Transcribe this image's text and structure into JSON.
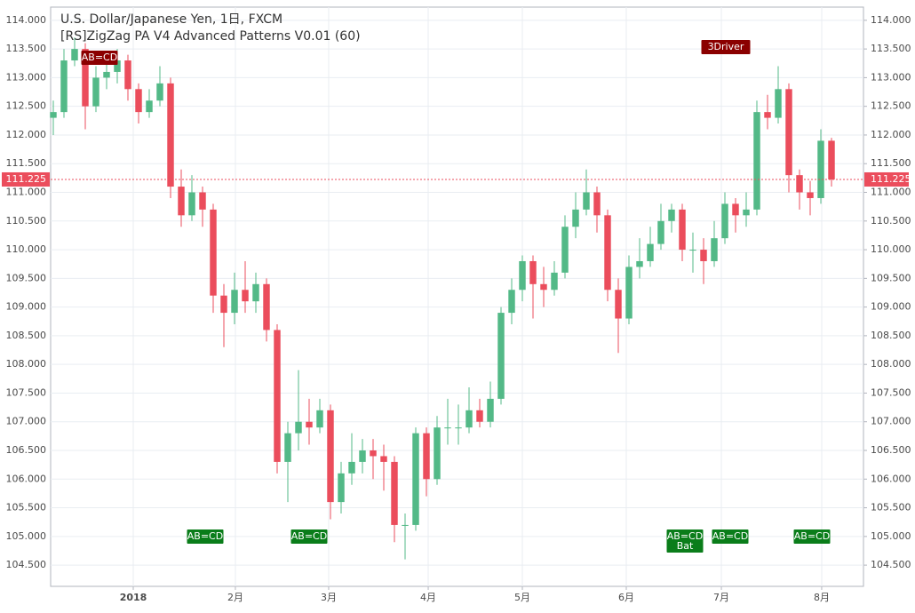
{
  "chart_data": {
    "type": "candlestick",
    "title": "U.S. Dollar/Japanese Yen, 1日, FXCM",
    "subtitle": "[RS]ZigZag PA V4 Advanced Patterns V0.01 (60)",
    "up_color": "#53b987",
    "down_color": "#eb4d5c",
    "grid": true,
    "categories": [
      null,
      null,
      null,
      null,
      null,
      null,
      null,
      null,
      null,
      null,
      null,
      null,
      null,
      null,
      null,
      null,
      null,
      null,
      null,
      null,
      null,
      null,
      null,
      null,
      null,
      null,
      null,
      null,
      null,
      null,
      null,
      null,
      null,
      null,
      null,
      null,
      null,
      null,
      null,
      null,
      null,
      null,
      null,
      null,
      null,
      null,
      null,
      null,
      null,
      null,
      null,
      null,
      null,
      null,
      null,
      null,
      null,
      null,
      null,
      null,
      null,
      null,
      null,
      null,
      null,
      null,
      null,
      null,
      null,
      null,
      null,
      null,
      null,
      null
    ],
    "open": [
      112.3,
      112.4,
      113.3,
      113.5,
      112.5,
      113.0,
      113.1,
      113.3,
      112.8,
      112.4,
      112.6,
      112.9,
      111.1,
      110.6,
      111.0,
      110.7,
      109.2,
      108.9,
      109.3,
      109.1,
      109.4,
      108.6,
      106.3,
      106.8,
      107.0,
      106.9,
      107.2,
      105.6,
      106.1,
      106.3,
      106.5,
      106.4,
      106.3,
      105.2,
      105.2,
      106.8,
      106.0,
      106.9,
      106.9,
      106.9,
      107.2,
      107.0,
      107.4,
      108.9,
      109.3,
      109.8,
      109.4,
      109.3,
      109.6,
      110.4,
      110.7,
      111.0,
      110.6,
      109.3,
      108.8,
      109.7,
      109.8,
      110.1,
      110.5,
      110.7,
      110.0,
      110.0,
      109.8,
      110.2,
      110.8,
      110.6,
      110.7,
      112.4,
      112.3,
      112.8,
      111.3,
      111.0,
      110.9,
      111.9
    ],
    "high": [
      112.6,
      113.5,
      113.7,
      113.6,
      113.2,
      113.4,
      113.5,
      113.4,
      112.9,
      112.8,
      113.2,
      113.0,
      111.4,
      111.3,
      111.1,
      110.8,
      109.4,
      109.6,
      109.8,
      109.6,
      109.5,
      108.7,
      107.0,
      107.9,
      107.4,
      107.4,
      107.3,
      106.3,
      106.8,
      106.7,
      106.7,
      106.6,
      106.4,
      105.4,
      106.9,
      106.9,
      107.1,
      107.4,
      107.3,
      107.6,
      107.4,
      107.7,
      109.0,
      109.5,
      109.9,
      109.9,
      109.7,
      109.8,
      110.6,
      111.0,
      111.4,
      111.1,
      110.7,
      109.5,
      109.9,
      110.2,
      110.4,
      110.8,
      110.8,
      110.8,
      110.3,
      110.2,
      110.5,
      111.0,
      110.9,
      111.0,
      112.6,
      112.7,
      113.2,
      112.9,
      111.4,
      111.2,
      112.1,
      111.95
    ],
    "low": [
      112.0,
      112.3,
      113.2,
      112.1,
      112.4,
      112.8,
      112.9,
      112.6,
      112.2,
      112.3,
      112.5,
      110.9,
      110.4,
      110.5,
      110.4,
      108.9,
      108.3,
      108.7,
      108.9,
      108.9,
      108.4,
      106.1,
      105.6,
      106.5,
      106.6,
      106.8,
      105.3,
      105.4,
      105.9,
      106.1,
      106.0,
      105.8,
      104.9,
      104.6,
      105.1,
      105.7,
      105.9,
      106.6,
      106.6,
      106.8,
      106.9,
      106.9,
      107.3,
      108.7,
      109.1,
      108.8,
      109.0,
      109.2,
      109.5,
      110.2,
      110.6,
      110.3,
      109.1,
      108.2,
      108.7,
      109.5,
      109.7,
      110.0,
      110.3,
      109.8,
      109.6,
      109.4,
      109.7,
      110.1,
      110.3,
      110.4,
      110.6,
      112.1,
      112.2,
      111.0,
      110.7,
      110.6,
      110.8,
      111.1
    ],
    "close": [
      112.4,
      113.3,
      113.5,
      112.5,
      113.0,
      113.1,
      113.3,
      112.8,
      112.4,
      112.6,
      112.9,
      111.1,
      110.6,
      111.0,
      110.7,
      109.2,
      108.9,
      109.3,
      109.1,
      109.4,
      108.6,
      106.3,
      106.8,
      107.0,
      106.9,
      107.2,
      105.6,
      106.1,
      106.3,
      106.5,
      106.4,
      106.3,
      105.2,
      105.2,
      106.8,
      106.0,
      106.9,
      106.9,
      106.9,
      107.2,
      107.0,
      107.4,
      108.9,
      109.3,
      109.8,
      109.4,
      109.3,
      109.6,
      110.4,
      110.7,
      111.0,
      110.6,
      109.3,
      108.8,
      109.7,
      109.8,
      110.1,
      110.5,
      110.7,
      110.0,
      110.0,
      109.8,
      110.2,
      110.8,
      110.6,
      110.7,
      112.4,
      112.3,
      112.8,
      111.3,
      111.0,
      110.9,
      111.9,
      111.225
    ],
    "last_price": 111.225,
    "xlim": [
      -0.25,
      76.0
    ],
    "xticks": [
      {
        "value": 7.5,
        "label": "2018"
      },
      {
        "value": 17.08,
        "label": "2月"
      },
      {
        "value": 25.83,
        "label": "3月"
      },
      {
        "value": 35.17,
        "label": "4月"
      },
      {
        "value": 44.0,
        "label": "5月"
      },
      {
        "value": 53.75,
        "label": "6月"
      },
      {
        "value": 62.67,
        "label": "7月"
      },
      {
        "value": 72.08,
        "label": "8月"
      }
    ],
    "ylim": [
      104.13,
      114.23
    ],
    "yticks": [
      {
        "value": 104.5,
        "label": "104.500"
      },
      {
        "value": 105,
        "label": "105.000"
      },
      {
        "value": 105.5,
        "label": "105.500"
      },
      {
        "value": 106,
        "label": "106.000"
      },
      {
        "value": 106.5,
        "label": "106.500"
      },
      {
        "value": 107,
        "label": "107.000"
      },
      {
        "value": 107.5,
        "label": "107.500"
      },
      {
        "value": 108,
        "label": "108.000"
      },
      {
        "value": 108.5,
        "label": "108.500"
      },
      {
        "value": 109,
        "label": "109.000"
      },
      {
        "value": 109.5,
        "label": "109.500"
      },
      {
        "value": 110,
        "label": "110.000"
      },
      {
        "value": 110.5,
        "label": "110.500"
      },
      {
        "value": 111,
        "label": "111.000"
      },
      {
        "value": 111.5,
        "label": "111.500"
      },
      {
        "value": 112,
        "label": "112.000"
      },
      {
        "value": 112.5,
        "label": "112.500"
      },
      {
        "value": 113,
        "label": "113.000"
      },
      {
        "value": 113.5,
        "label": "113.500"
      },
      {
        "value": 114,
        "label": "114.000"
      }
    ],
    "annotations": [
      {
        "text": "AB=CD"
      },
      {
        "text": "3Driver"
      },
      {
        "text": "AB=CD"
      },
      {
        "text": "AB=CD"
      },
      {
        "text": "AB=CD",
        "subtext": "Bat"
      },
      {
        "text": "AB=CD"
      },
      {
        "text": "AB=CD"
      }
    ]
  }
}
